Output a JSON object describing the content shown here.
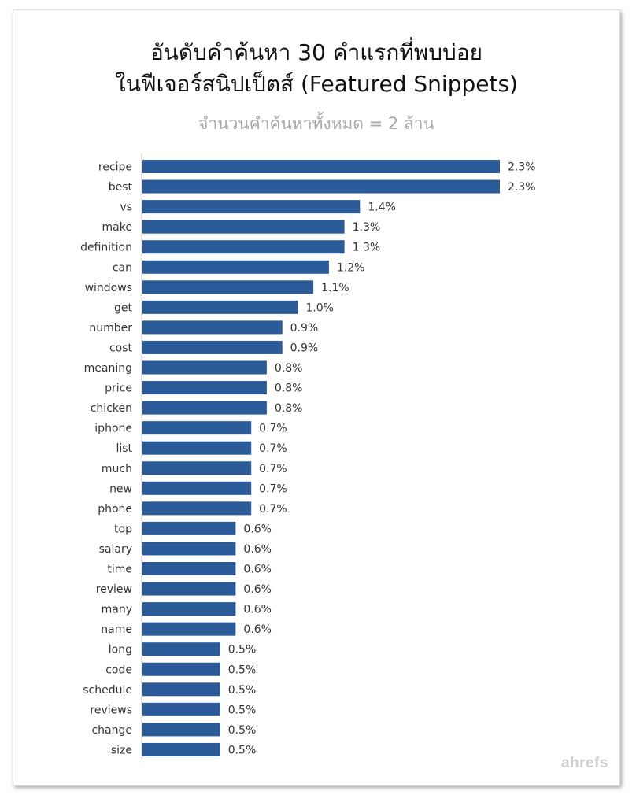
{
  "header": {
    "title_line1": "อันดับคำค้นหา 30 คำแรกที่พบบ่อย",
    "title_line2": "ในฟีเจอร์สนิปเป็ตส์ (Featured Snippets)",
    "subtitle": "จำนวนคำค้นหาทั้งหมด = 2 ล้าน"
  },
  "brand": "ahrefs",
  "colors": {
    "bar": "#2a5a98",
    "axis": "#c8c8c8",
    "label": "#333333"
  },
  "chart_data": {
    "type": "bar",
    "orientation": "horizontal",
    "categories": [
      "recipe",
      "best",
      "vs",
      "make",
      "definition",
      "can",
      "windows",
      "get",
      "number",
      "cost",
      "meaning",
      "price",
      "chicken",
      "iphone",
      "list",
      "much",
      "new",
      "phone",
      "top",
      "salary",
      "time",
      "review",
      "many",
      "name",
      "long",
      "code",
      "schedule",
      "reviews",
      "change",
      "size"
    ],
    "values": [
      2.3,
      2.3,
      1.4,
      1.3,
      1.3,
      1.2,
      1.1,
      1.0,
      0.9,
      0.9,
      0.8,
      0.8,
      0.8,
      0.7,
      0.7,
      0.7,
      0.7,
      0.7,
      0.6,
      0.6,
      0.6,
      0.6,
      0.6,
      0.6,
      0.5,
      0.5,
      0.5,
      0.5,
      0.5,
      0.5
    ],
    "labels": [
      "2.3%",
      "2.3%",
      "1.4%",
      "1.3%",
      "1.3%",
      "1.2%",
      "1.1%",
      "1.0%",
      "0.9%",
      "0.9%",
      "0.8%",
      "0.8%",
      "0.8%",
      "0.7%",
      "0.7%",
      "0.7%",
      "0.7%",
      "0.7%",
      "0.6%",
      "0.6%",
      "0.6%",
      "0.6%",
      "0.6%",
      "0.6%",
      "0.5%",
      "0.5%",
      "0.5%",
      "0.5%",
      "0.5%",
      "0.5%"
    ],
    "xlim": [
      0,
      2.3
    ],
    "grid": false,
    "legend": "none"
  }
}
